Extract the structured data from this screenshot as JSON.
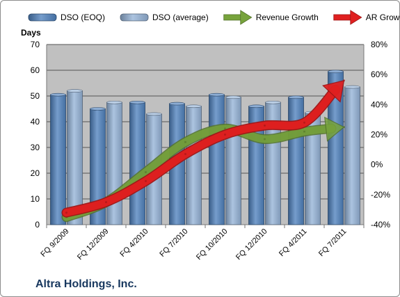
{
  "company": "Altra Holdings, Inc.",
  "chart_data": {
    "type": "bar",
    "categories": [
      "FQ 9/2009",
      "FQ 12/2009",
      "FQ 4/2010",
      "FQ 7/2010",
      "FQ 10/2010",
      "FQ 12/2010",
      "FQ 4/2011",
      "FQ 7/2011"
    ],
    "series": [
      {
        "name": "DSO (EOQ)",
        "type": "bar",
        "axis": "left",
        "color": "#4f81bd",
        "values": [
          50.5,
          45,
          47.5,
          47,
          50.5,
          46,
          49.5,
          59.5
        ]
      },
      {
        "name": "DSO (average)",
        "type": "bar",
        "axis": "left",
        "color": "#95b3d7",
        "values": [
          52,
          47.5,
          43,
          46,
          49.5,
          47.5,
          43.5,
          53.5
        ]
      },
      {
        "name": "Revenue Growth",
        "type": "arrow",
        "axis": "right",
        "color": "#77a33c",
        "values": [
          -35,
          -25,
          -5,
          15,
          24,
          17,
          22,
          25
        ]
      },
      {
        "name": "AR Growth",
        "type": "arrow",
        "axis": "right",
        "color": "#e02020",
        "values": [
          -32,
          -25,
          -11,
          7,
          20,
          26,
          28,
          56
        ]
      }
    ],
    "ylabel": "Days",
    "y_left": {
      "min": 0,
      "max": 70,
      "step": 10
    },
    "y_right": {
      "min": -40,
      "max": 80,
      "step": 20,
      "suffix": "%"
    },
    "grid": true,
    "legend_position": "top"
  }
}
